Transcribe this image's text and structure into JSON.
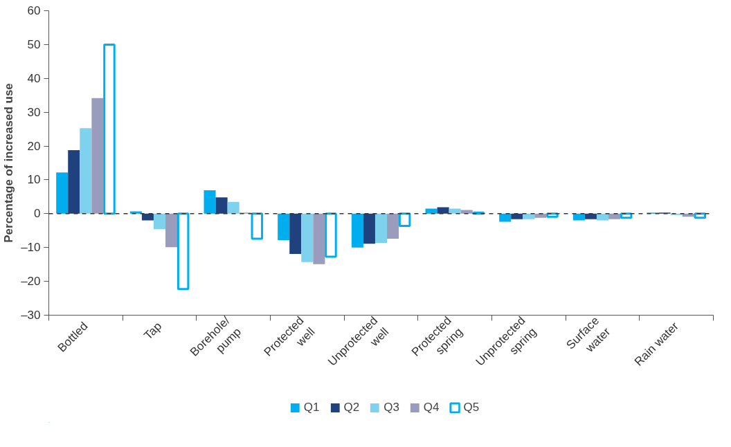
{
  "chart_data": {
    "type": "bar",
    "ylabel": "Percentage of increased use",
    "categories": [
      "Bottled",
      "Tap",
      "Borehole/\npump",
      "Protected\nwell",
      "Unprotected\nwell",
      "Protected\nspring",
      "Unprotected\nspring",
      "Surface\nwater",
      "Rain water"
    ],
    "series": [
      {
        "name": "Q1",
        "color": "#00aeef",
        "values": [
          12.2,
          0.7,
          6.9,
          -7.8,
          -10.0,
          1.5,
          -2.4,
          -2.0,
          0.3
        ]
      },
      {
        "name": "Q2",
        "color": "#1f417d",
        "values": [
          18.8,
          -2.0,
          4.8,
          -11.9,
          -8.9,
          1.9,
          -1.6,
          -1.6,
          0.3
        ]
      },
      {
        "name": "Q3",
        "color": "#7fd2ee",
        "values": [
          25.3,
          -4.6,
          3.5,
          -14.3,
          -8.6,
          1.5,
          -1.6,
          -2.0,
          -0.4
        ]
      },
      {
        "name": "Q4",
        "color": "#999cbc",
        "values": [
          34.2,
          -9.9,
          0.3,
          -14.9,
          -7.4,
          1.1,
          -1.2,
          -1.6,
          -0.9
        ]
      },
      {
        "name": "Q5",
        "color": "#00aeef",
        "values": [
          50,
          -22.3,
          -7.4,
          -12.7,
          -3.6,
          0.3,
          -0.9,
          -1.2,
          -1.2
        ]
      }
    ],
    "ylim": [
      -30,
      60
    ],
    "yticks": [
      {
        "value": -30,
        "label": "–30"
      },
      {
        "value": -20,
        "label": "–20"
      },
      {
        "value": -10,
        "label": "–10"
      },
      0,
      10,
      20,
      30,
      40,
      50,
      60
    ],
    "ref_lines": [
      {
        "axis": "y",
        "value": 0,
        "label": null,
        "color": "#333333",
        "line_style": "dashed"
      }
    ],
    "grid": false,
    "legend": "bottom"
  }
}
